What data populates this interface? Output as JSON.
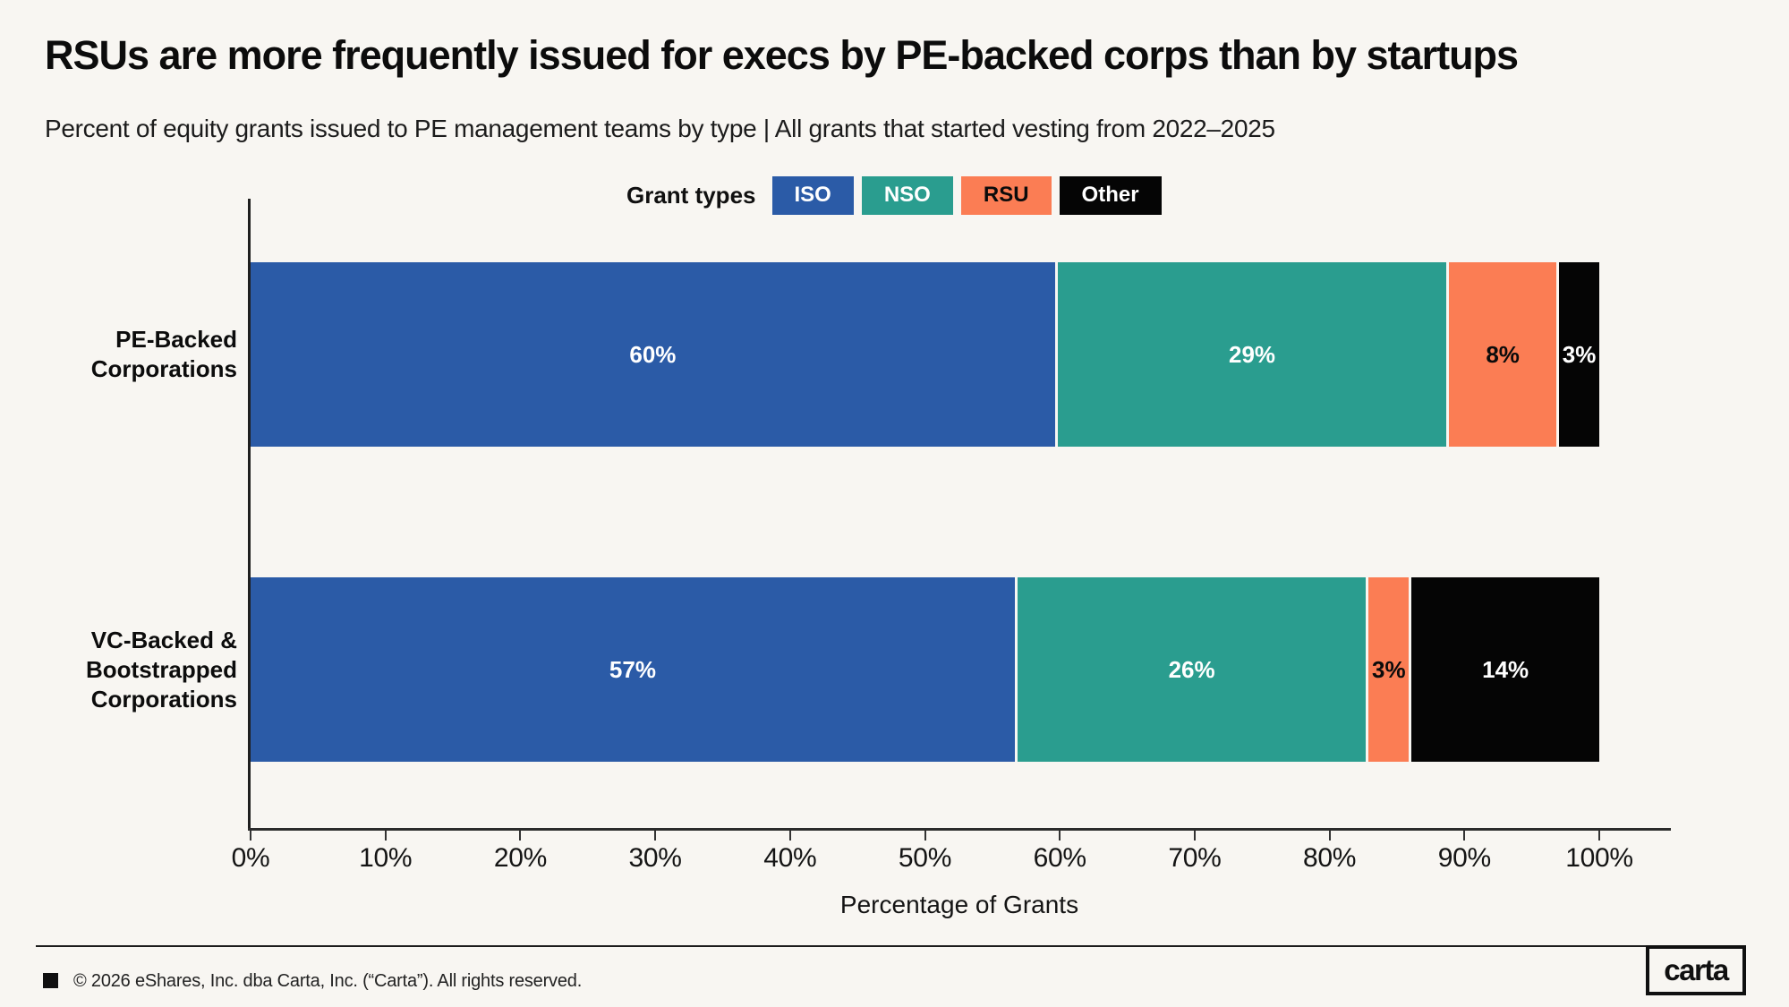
{
  "page": {
    "title": "RSUs are more frequently issued for execs by PE-backed corps than by startups",
    "subtitle": "Percent of equity grants issued to PE management teams by type | All grants that started vesting from 2022–2025",
    "background": "#F8F6F2"
  },
  "legend": {
    "label": "Grant types",
    "items": [
      {
        "label": "ISO",
        "color": "#2B5BA7",
        "text_color": "#FFFFFF"
      },
      {
        "label": "NSO",
        "color": "#2A9D8F",
        "text_color": "#FFFFFF"
      },
      {
        "label": "RSU",
        "color": "#FB7D54",
        "text_color": "#0B0B0B"
      },
      {
        "label": "Other",
        "color": "#050505",
        "text_color": "#FFFFFF"
      }
    ]
  },
  "chart_data": {
    "type": "bar",
    "orientation": "horizontal",
    "stacked": true,
    "categories": [
      "PE-Backed\nCorporations",
      "VC-Backed &\nBootstrapped\nCorporations"
    ],
    "series": [
      {
        "name": "ISO",
        "color": "#2B5BA7",
        "label_color": "#FFFFFF",
        "values": [
          60,
          57
        ]
      },
      {
        "name": "NSO",
        "color": "#2A9D8F",
        "label_color": "#FFFFFF",
        "values": [
          29,
          26
        ]
      },
      {
        "name": "RSU",
        "color": "#FB7D54",
        "label_color": "#0B0B0B",
        "values": [
          8,
          3
        ]
      },
      {
        "name": "Other",
        "color": "#050505",
        "label_color": "#FFFFFF",
        "values": [
          3,
          14
        ]
      }
    ],
    "value_suffix": "%",
    "xlabel": "Percentage of Grants",
    "x_ticks": [
      "0%",
      "10%",
      "20%",
      "30%",
      "40%",
      "50%",
      "60%",
      "70%",
      "80%",
      "90%",
      "100%"
    ],
    "xlim": [
      0,
      100
    ],
    "grid": false,
    "legend_position": "top"
  },
  "footer": {
    "copyright": "© 2026 eShares, Inc. dba Carta, Inc. (“Carta”). All rights reserved.",
    "logo_text": "carta"
  }
}
